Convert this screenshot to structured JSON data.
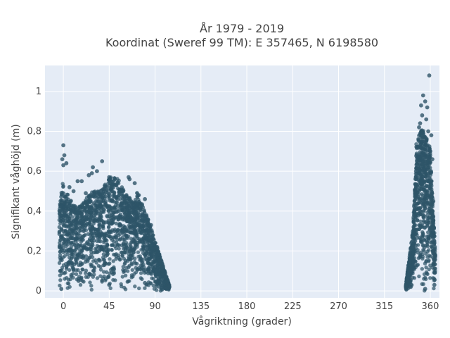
{
  "chart_data": {
    "type": "scatter",
    "title_lines": [
      "År 1979 - 2019",
      "Koordinat (Sweref 99 TM): E 357465, N 6198580"
    ],
    "xlabel": "Vågriktning (grader)",
    "ylabel": "Signifikant våghöjd (m)",
    "xlim": [
      -18,
      369
    ],
    "ylim": [
      -0.035,
      1.13
    ],
    "x_ticks": [
      0,
      45,
      90,
      135,
      180,
      225,
      270,
      315,
      360
    ],
    "x_tick_labels": [
      "0",
      "45",
      "90",
      "135",
      "180",
      "225",
      "270",
      "315",
      "360"
    ],
    "y_ticks": [
      0,
      0.2,
      0.4,
      0.6,
      0.8,
      1.0
    ],
    "y_tick_labels": [
      "0",
      "0,2",
      "0,4",
      "0,6",
      "0,8",
      "1"
    ],
    "grid": true,
    "marker_color": "#2e5468",
    "series": [
      {
        "name": "",
        "points": [
          [
            0,
            0.73
          ],
          [
            1,
            0.68
          ],
          [
            -1,
            0.66
          ],
          [
            3,
            0.64
          ],
          [
            0,
            0.63
          ],
          [
            29,
            0.62
          ],
          [
            25,
            0.58
          ],
          [
            28,
            0.59
          ],
          [
            38,
            0.65
          ],
          [
            45,
            0.57
          ],
          [
            64,
            0.57
          ],
          [
            65,
            0.56
          ],
          [
            70,
            0.54
          ],
          [
            18,
            0.55
          ],
          [
            14,
            0.55
          ],
          [
            33,
            0.6
          ],
          [
            52,
            0.53
          ],
          [
            80,
            0.46
          ],
          [
            86,
            0.33
          ],
          [
            92,
            0.22
          ],
          [
            97,
            0.12
          ],
          [
            100,
            0.07
          ],
          [
            103,
            0.04
          ],
          [
            104,
            0.02
          ],
          [
            6,
            0.52
          ],
          [
            10,
            0.5
          ],
          [
            22,
            0.49
          ],
          [
            40,
            0.51
          ],
          [
            57,
            0.5
          ],
          [
            74,
            0.48
          ],
          [
            2,
            0.4
          ],
          [
            12,
            0.42
          ],
          [
            30,
            0.44
          ],
          [
            48,
            0.45
          ],
          [
            60,
            0.47
          ],
          [
            78,
            0.38
          ],
          [
            84,
            0.3
          ],
          [
            88,
            0.26
          ],
          [
            95,
            0.15
          ],
          [
            0,
            0.3
          ],
          [
            20,
            0.3
          ],
          [
            50,
            0.3
          ],
          [
            70,
            0.3
          ],
          [
            5,
            0.2
          ],
          [
            35,
            0.22
          ],
          [
            65,
            0.2
          ],
          [
            90,
            0.12
          ],
          [
            -3,
            0.1
          ],
          [
            15,
            0.05
          ],
          [
            45,
            0.03
          ],
          [
            80,
            0.04
          ],
          [
            101,
            0.01
          ],
          [
            -2,
            0.01
          ],
          [
            30,
            0.1
          ],
          [
            60,
            0.1
          ],
          [
            359,
            1.08
          ],
          [
            353,
            0.98
          ],
          [
            355,
            0.95
          ],
          [
            351,
            0.93
          ],
          [
            357,
            0.92
          ],
          [
            352,
            0.88
          ],
          [
            356,
            0.86
          ],
          [
            350,
            0.84
          ],
          [
            349,
            0.82
          ],
          [
            358,
            0.8
          ],
          [
            361,
            0.78
          ],
          [
            354,
            0.75
          ],
          [
            347,
            0.72
          ],
          [
            360,
            0.7
          ],
          [
            362,
            0.66
          ],
          [
            346,
            0.6
          ],
          [
            361,
            0.55
          ],
          [
            345,
            0.5
          ],
          [
            363,
            0.45
          ],
          [
            344,
            0.38
          ],
          [
            362,
            0.3
          ],
          [
            343,
            0.22
          ],
          [
            364,
            0.15
          ],
          [
            341,
            0.1
          ],
          [
            338,
            0.05
          ],
          [
            336,
            0.02
          ],
          [
            364,
            0.03
          ],
          [
            355,
            0.01
          ],
          [
            340,
            0.02
          ],
          [
            350,
            0.4
          ]
        ]
      }
    ]
  }
}
